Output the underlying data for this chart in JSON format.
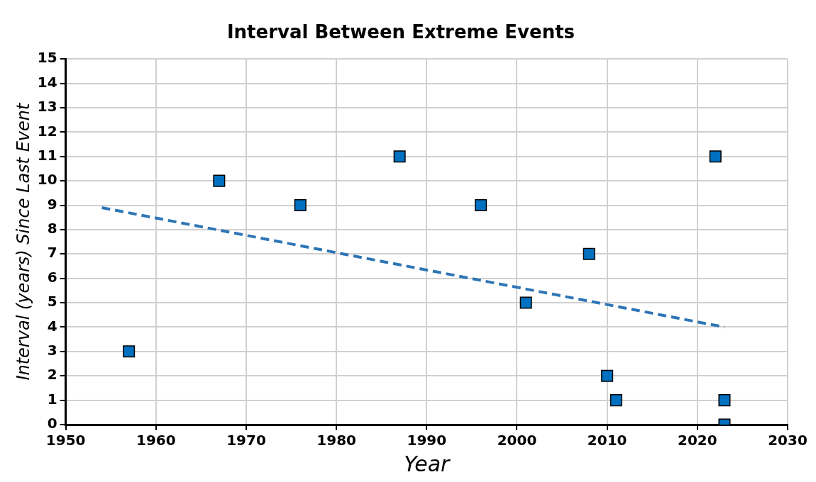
{
  "chart_data": {
    "type": "scatter",
    "title": "Interval Between Extreme Events",
    "xlabel": "Year",
    "ylabel": "Interval (years) Since Last Event",
    "xlim": [
      1950,
      2030
    ],
    "xticks": [
      1950,
      1960,
      1970,
      1980,
      1990,
      2000,
      2010,
      2020,
      2030
    ],
    "ylim": [
      0,
      15
    ],
    "yticks": [
      0,
      1,
      2,
      3,
      4,
      5,
      6,
      7,
      8,
      9,
      10,
      11,
      12,
      13,
      14,
      15
    ],
    "grid": true,
    "series": [
      {
        "type": "scatter",
        "marker": "square",
        "color": "#0070c0",
        "x": [
          1957,
          1967,
          1976,
          1987,
          1996,
          2001,
          2008,
          2010,
          2011,
          2022,
          2023,
          2023
        ],
        "values": [
          3,
          10,
          9,
          11,
          9,
          5,
          7,
          2,
          1,
          11,
          1,
          0
        ]
      },
      {
        "type": "line",
        "marker": "none",
        "line_style": "dashed",
        "color": "#2e75b6",
        "x": [
          1954,
          2023
        ],
        "values": [
          8.9,
          4.0
        ]
      }
    ]
  }
}
